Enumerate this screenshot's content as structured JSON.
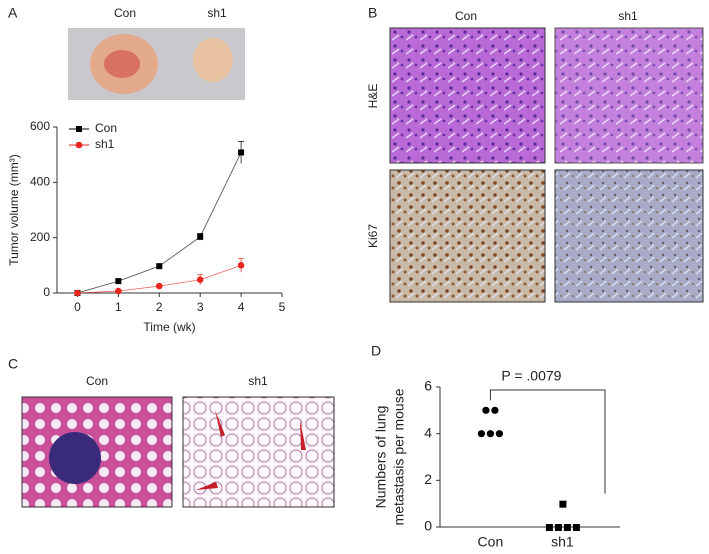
{
  "panel_labels": [
    "A",
    "B",
    "C",
    "D"
  ],
  "photo_A": {
    "labels": [
      "Con",
      "sh1"
    ]
  },
  "panel_B": {
    "columns": [
      "Con",
      "sh1"
    ],
    "rows": [
      "H&E",
      "Ki67"
    ]
  },
  "panel_C": {
    "labels": [
      "Con",
      "sh1"
    ]
  },
  "chart_data": [
    {
      "type": "line",
      "x": [
        0,
        1,
        2,
        3,
        4
      ],
      "xlim": [
        -0.5,
        5
      ],
      "xticks": [
        0,
        1,
        2,
        3,
        4,
        5
      ],
      "ylim": [
        0,
        600
      ],
      "yticks": [
        0,
        200,
        400,
        600
      ],
      "x_label": "Time (wk)",
      "y_label": "Tumor volume (mm³)",
      "legend": "upper left",
      "series": [
        {
          "name": "Con",
          "color": "#000000",
          "marker": "square",
          "values": [
            0,
            43,
            97,
            203,
            508
          ],
          "errors": [
            0,
            5,
            4,
            12,
            40
          ]
        },
        {
          "name": "sh1",
          "color": "#e8261f",
          "marker": "circle",
          "values": [
            0,
            7,
            25,
            48,
            100
          ],
          "errors": [
            0,
            3,
            4,
            18,
            25
          ]
        }
      ]
    },
    {
      "type": "dot",
      "categories": [
        "Con",
        "sh1"
      ],
      "values": [
        [
          5,
          5,
          4,
          4,
          4
        ],
        [
          1,
          0,
          0,
          0,
          0
        ]
      ],
      "markers": [
        "circle",
        "square"
      ],
      "color": "#000000",
      "ylim": [
        0,
        6
      ],
      "yticks": [
        0,
        2,
        4,
        6
      ],
      "y_label": [
        "Numbers of lung",
        "metastasis per mouse"
      ],
      "annotation": "P = .0079"
    }
  ]
}
